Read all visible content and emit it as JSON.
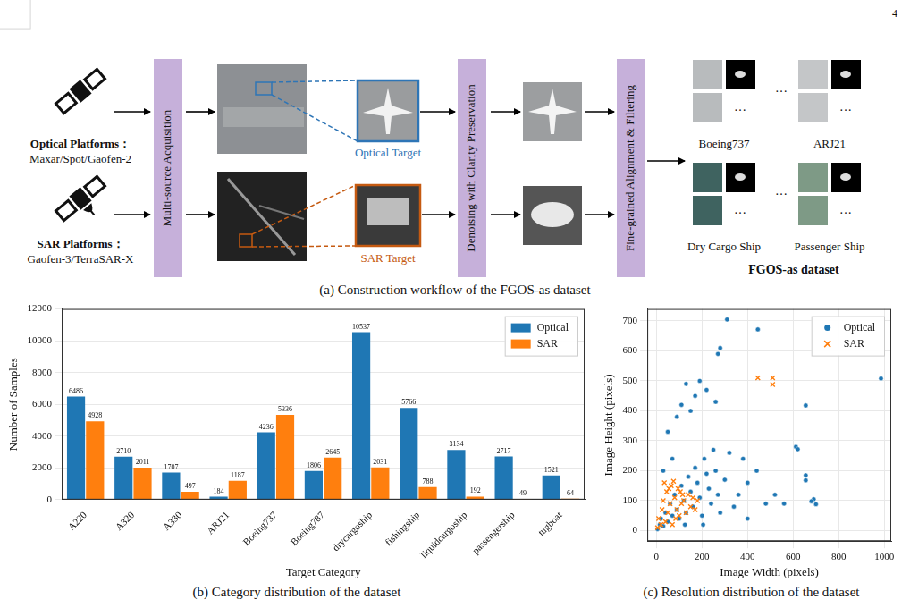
{
  "page_number": "4",
  "diagram": {
    "caption": "(a) Construction workflow of the FGOS-as dataset",
    "platforms": [
      {
        "title": "Optical Platforms：",
        "subtitle": "Maxar/Spot/Gaofen-2"
      },
      {
        "title": "SAR Platforms：",
        "subtitle": "Gaofen-3/TerraSAR-X"
      }
    ],
    "steps": [
      "Multi-source Acquisition",
      "Denoising with Clarity Preservation",
      "Fine-grained Alignment & Filtering"
    ],
    "targets": [
      "Optical Target",
      "SAR Target"
    ],
    "examples": [
      "Boeing737",
      "ARJ21",
      "Dry Cargo Ship",
      "Passenger Ship"
    ],
    "ellipsis": "…",
    "output": "FGOS-as dataset"
  },
  "chart_data": [
    {
      "type": "bar",
      "caption": "(b) Category distribution of the dataset",
      "x_label": "Target Category",
      "y_label": "Number of Samples",
      "categories": [
        "A220",
        "A320",
        "A330",
        "ARJ21",
        "Boeing737",
        "Boeing787",
        "drycargoship",
        "fishingship",
        "liquidcargoship",
        "passengership",
        "tugboat"
      ],
      "series": [
        {
          "name": "Optical",
          "color": "#1f77b4",
          "values": [
            6486,
            2710,
            1707,
            184,
            4236,
            1806,
            10537,
            5766,
            3134,
            2717,
            1521
          ]
        },
        {
          "name": "SAR",
          "color": "#ff7f0e",
          "values": [
            4928,
            2011,
            497,
            1187,
            5336,
            2645,
            2031,
            788,
            192,
            49,
            64
          ]
        }
      ],
      "ylim": [
        0,
        12000
      ],
      "yticks": [
        0,
        2000,
        4000,
        6000,
        8000,
        10000,
        12000
      ],
      "grid": true,
      "legend": "upper right",
      "data_labels": true
    },
    {
      "type": "scatter",
      "caption": "(c) Resolution distribution of the dataset",
      "x_label": "Image Width (pixels)",
      "y_label": "Image Height (pixels)",
      "series": [
        {
          "name": "Optical",
          "color": "#1f77b4",
          "marker": "circle",
          "x": [
            5,
            15,
            20,
            30,
            40,
            50,
            60,
            70,
            80,
            90,
            100,
            110,
            120,
            130,
            140,
            150,
            160,
            170,
            180,
            190,
            200,
            210,
            220,
            230,
            240,
            250,
            260,
            270,
            280,
            300,
            320,
            340,
            360,
            380,
            400,
            440,
            480,
            520,
            560,
            30,
            50,
            70,
            90,
            110,
            130,
            150,
            170,
            190,
            220,
            260,
            270,
            280,
            310,
            445,
            985,
            655,
            612,
            620,
            655,
            655,
            690,
            700,
            680,
            125,
            205,
            400
          ],
          "values": [
            5,
            20,
            40,
            15,
            60,
            30,
            90,
            50,
            120,
            70,
            40,
            150,
            100,
            60,
            180,
            130,
            80,
            210,
            160,
            110,
            50,
            240,
            190,
            140,
            90,
            270,
            200,
            120,
            60,
            170,
            260,
            80,
            120,
            240,
            160,
            200,
            90,
            120,
            90,
            200,
            330,
            240,
            380,
            420,
            490,
            400,
            450,
            500,
            470,
            430,
            590,
            610,
            705,
            672,
            508,
            418,
            280,
            272,
            185,
            168,
            105,
            88,
            98,
            20,
            20,
            40
          ]
        },
        {
          "name": "SAR",
          "color": "#ff7f0e",
          "marker": "x",
          "x": [
            5,
            10,
            20,
            25,
            30,
            40,
            45,
            50,
            60,
            65,
            70,
            80,
            85,
            90,
            100,
            105,
            110,
            120,
            130,
            140,
            150,
            160,
            170,
            180,
            35,
            55,
            75,
            95,
            115,
            445,
            510,
            510
          ],
          "values": [
            10,
            40,
            20,
            70,
            100,
            30,
            130,
            60,
            90,
            150,
            20,
            110,
            40,
            70,
            50,
            130,
            90,
            100,
            60,
            120,
            80,
            110,
            70,
            100,
            160,
            140,
            165,
            140,
            120,
            510,
            510,
            488
          ]
        }
      ],
      "xlim": [
        -40,
        1030
      ],
      "xticks": [
        0,
        200,
        400,
        600,
        800,
        1000
      ],
      "ylim": [
        -35,
        740
      ],
      "yticks": [
        0,
        100,
        200,
        300,
        400,
        500,
        600,
        700
      ],
      "grid": true,
      "legend": "upper right"
    }
  ]
}
